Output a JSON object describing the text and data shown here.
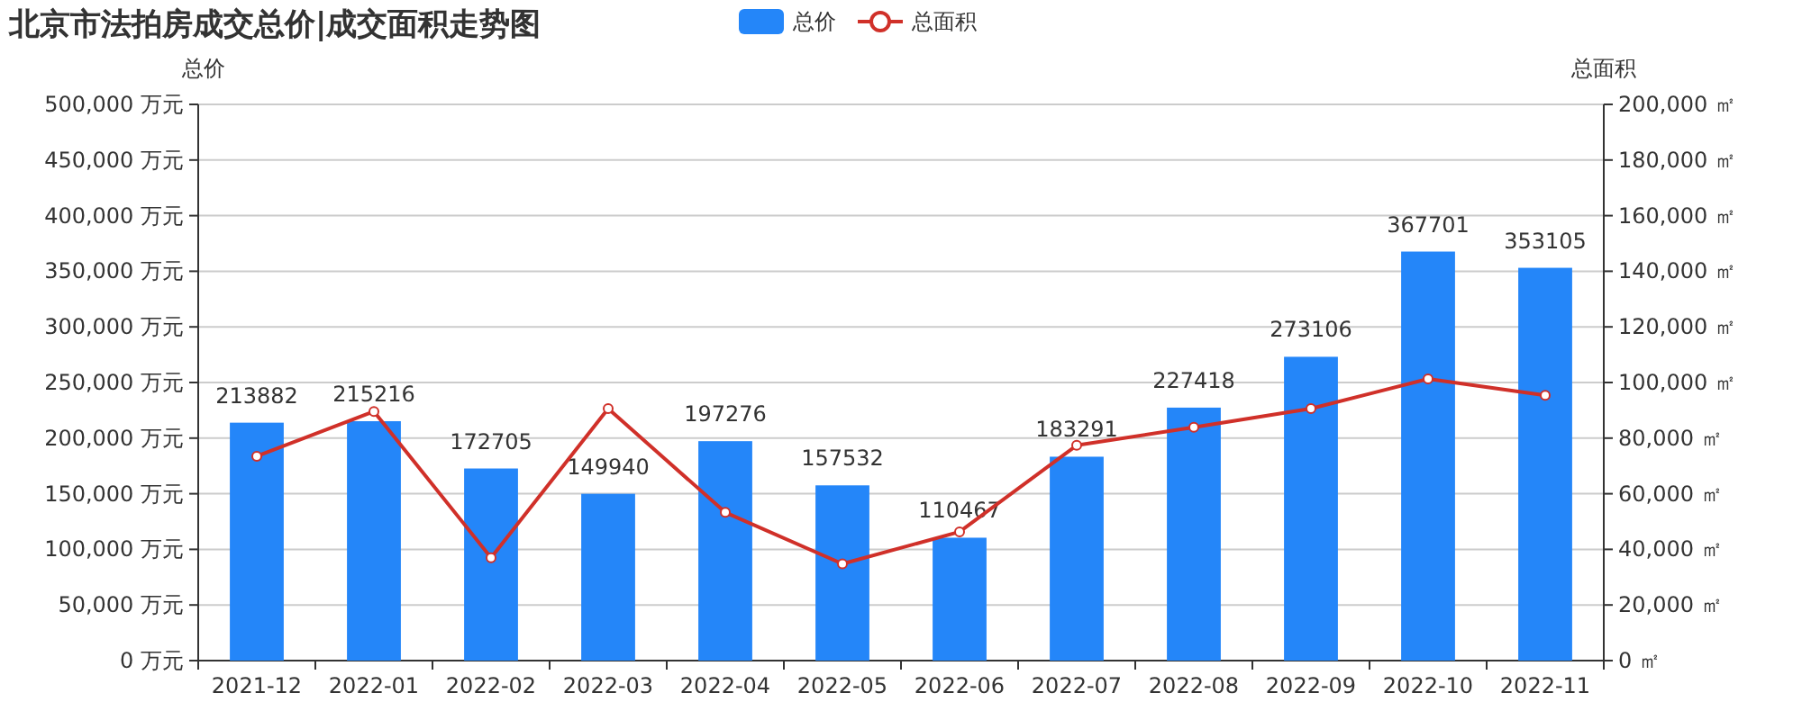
{
  "chart_data": {
    "type": "bar",
    "title": "北京市法拍房成交总价|成交面积走势图",
    "ylabel": "总价",
    "y2label": "总面积",
    "categories": [
      "2021-12",
      "2022-01",
      "2022-02",
      "2022-03",
      "2022-04",
      "2022-05",
      "2022-06",
      "2022-07",
      "2022-08",
      "2022-09",
      "2022-10",
      "2022-11"
    ],
    "series": [
      {
        "name": "总价",
        "color": "#2486f9",
        "data_labels": true,
        "values": [
          213882,
          215216,
          172705,
          149940,
          197276,
          157532,
          110467,
          183291,
          227418,
          273106,
          367701,
          353105
        ]
      },
      {
        "name": "总面积",
        "type": "line",
        "axis": "y2",
        "color": "#d03029",
        "marker": "circle",
        "line_style": "solid",
        "values": [
          73500,
          89600,
          37000,
          90600,
          53300,
          34800,
          46300,
          77400,
          83900,
          90600,
          101300,
          95400
        ]
      }
    ],
    "ylim": [
      0,
      500000
    ],
    "yticks": [
      {
        "value": 0,
        "label": "0 万元"
      },
      {
        "value": 50000,
        "label": "50,000 万元"
      },
      {
        "value": 100000,
        "label": "100,000 万元"
      },
      {
        "value": 150000,
        "label": "150,000 万元"
      },
      {
        "value": 200000,
        "label": "200,000 万元"
      },
      {
        "value": 250000,
        "label": "250,000 万元"
      },
      {
        "value": 300000,
        "label": "300,000 万元"
      },
      {
        "value": 350000,
        "label": "350,000 万元"
      },
      {
        "value": 400000,
        "label": "400,000 万元"
      },
      {
        "value": 450000,
        "label": "450,000 万元"
      },
      {
        "value": 500000,
        "label": "500,000 万元"
      }
    ],
    "y2lim": [
      0,
      200000
    ],
    "y2ticks": [
      {
        "value": 0,
        "label": "0 ㎡"
      },
      {
        "value": 20000,
        "label": "20,000 ㎡"
      },
      {
        "value": 40000,
        "label": "40,000 ㎡"
      },
      {
        "value": 60000,
        "label": "60,000 ㎡"
      },
      {
        "value": 80000,
        "label": "80,000 ㎡"
      },
      {
        "value": 100000,
        "label": "100,000 ㎡"
      },
      {
        "value": 120000,
        "label": "120,000 ㎡"
      },
      {
        "value": 140000,
        "label": "140,000 ㎡"
      },
      {
        "value": 160000,
        "label": "160,000 ㎡"
      },
      {
        "value": 180000,
        "label": "180,000 ㎡"
      },
      {
        "value": 200000,
        "label": "200,000 ㎡"
      }
    ],
    "grid": "y",
    "legend": "top"
  }
}
